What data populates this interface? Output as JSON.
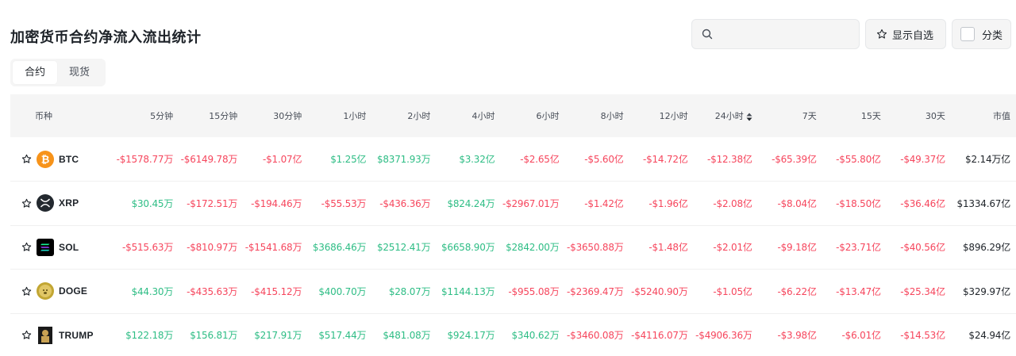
{
  "title": "加密货币合约净流入流出统计",
  "search": {
    "placeholder": ""
  },
  "toolbar": {
    "favorites_label": "显示自选",
    "category_label": "分类"
  },
  "tabs": [
    {
      "label": "合约",
      "active": true
    },
    {
      "label": "现货",
      "active": false
    }
  ],
  "columns": [
    "币种",
    "5分钟",
    "15分钟",
    "30分钟",
    "1小时",
    "2小时",
    "4小时",
    "6小时",
    "8小时",
    "12小时",
    "24小时",
    "7天",
    "15天",
    "30天",
    "市值"
  ],
  "sorted_column": "24小时",
  "colors": {
    "negative": "#f6465d",
    "positive": "#2ebd85",
    "brand_btc": "#f7931a"
  },
  "rows": [
    {
      "symbol": "BTC",
      "icon": "bitcoin-icon",
      "values": [
        "-$1578.77万",
        "-$6149.78万",
        "-$1.07亿",
        "$1.25亿",
        "$8371.93万",
        "$3.32亿",
        "-$2.65亿",
        "-$5.60亿",
        "-$14.72亿",
        "-$12.38亿",
        "-$65.39亿",
        "-$55.80亿",
        "-$49.37亿"
      ],
      "market_cap": "$2.14万亿"
    },
    {
      "symbol": "XRP",
      "icon": "xrp-icon",
      "values": [
        "$30.45万",
        "-$172.51万",
        "-$194.46万",
        "-$55.53万",
        "-$436.36万",
        "$824.24万",
        "-$2967.01万",
        "-$1.42亿",
        "-$1.96亿",
        "-$2.08亿",
        "-$8.04亿",
        "-$18.50亿",
        "-$36.46亿"
      ],
      "market_cap": "$1334.67亿"
    },
    {
      "symbol": "SOL",
      "icon": "solana-icon",
      "values": [
        "-$515.63万",
        "-$810.97万",
        "-$1541.68万",
        "$3686.46万",
        "$2512.41万",
        "$6658.90万",
        "$2842.00万",
        "-$3650.88万",
        "-$1.48亿",
        "-$2.01亿",
        "-$9.18亿",
        "-$23.71亿",
        "-$40.56亿"
      ],
      "market_cap": "$896.29亿"
    },
    {
      "symbol": "DOGE",
      "icon": "dogecoin-icon",
      "values": [
        "$44.30万",
        "-$435.63万",
        "-$415.12万",
        "$400.70万",
        "$28.07万",
        "$1144.13万",
        "-$955.08万",
        "-$2369.47万",
        "-$5240.90万",
        "-$1.05亿",
        "-$6.22亿",
        "-$13.47亿",
        "-$25.34亿"
      ],
      "market_cap": "$329.97亿"
    },
    {
      "symbol": "TRUMP",
      "icon": "trump-icon",
      "values": [
        "$122.18万",
        "$156.81万",
        "$217.91万",
        "$517.44万",
        "$481.08万",
        "$924.17万",
        "$340.62万",
        "-$3460.08万",
        "-$4116.07万",
        "-$4906.36万",
        "-$3.98亿",
        "-$6.01亿",
        "-$14.53亿"
      ],
      "market_cap": "$24.94亿"
    }
  ]
}
